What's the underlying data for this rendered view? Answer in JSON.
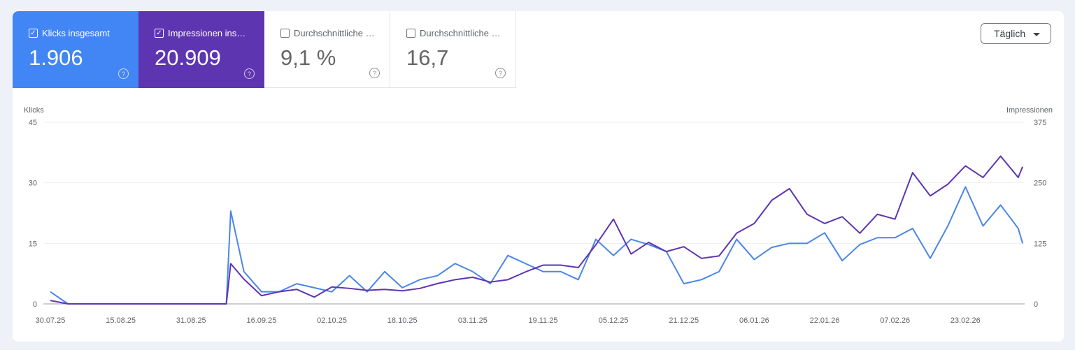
{
  "tiles": [
    {
      "label": "Klicks insgesamt",
      "value": "1.906",
      "checked": true,
      "color": "#4285f4"
    },
    {
      "label": "Impressionen ins…",
      "value": "20.909",
      "checked": true,
      "color": "#5e35b1"
    },
    {
      "label": "Durchschnittliche …",
      "value": "9,1 %",
      "checked": false
    },
    {
      "label": "Durchschnittliche …",
      "value": "16,7",
      "checked": false
    }
  ],
  "help_icon": "?",
  "check_icon": "✓",
  "granularity": {
    "selected": "Täglich"
  },
  "chart_data": {
    "type": "line",
    "ylabel_left": "Klicks",
    "ylabel_right": "Impressionen",
    "ylim_left": [
      0,
      45
    ],
    "ylim_right": [
      0,
      375
    ],
    "yticks_left": [
      "0",
      "15",
      "30",
      "45"
    ],
    "yticks_right": [
      "0",
      "125",
      "250",
      "375"
    ],
    "xticks": [
      "30.07.25",
      "15.08.25",
      "31.08.25",
      "16.09.25",
      "02.10.25",
      "18.10.25",
      "03.11.25",
      "19.11.25",
      "05.12.25",
      "21.12.25",
      "06.01.26",
      "22.01.26",
      "07.02.26",
      "23.02.26"
    ],
    "grid": true,
    "x": [
      "30.07.25",
      "03.08.25",
      "07.08.25",
      "11.08.25",
      "15.08.25",
      "19.08.25",
      "23.08.25",
      "27.08.25",
      "31.08.25",
      "04.09.25",
      "08.09.25",
      "09.09.25",
      "12.09.25",
      "16.09.25",
      "20.09.25",
      "24.09.25",
      "28.09.25",
      "02.10.25",
      "06.10.25",
      "10.10.25",
      "14.10.25",
      "18.10.25",
      "22.10.25",
      "26.10.25",
      "30.10.25",
      "03.11.25",
      "07.11.25",
      "11.11.25",
      "15.11.25",
      "19.11.25",
      "23.11.25",
      "27.11.25",
      "01.12.25",
      "05.12.25",
      "09.12.25",
      "13.12.25",
      "17.12.25",
      "21.12.25",
      "25.12.25",
      "29.12.25",
      "02.01.26",
      "06.01.26",
      "10.01.26",
      "14.01.26",
      "18.01.26",
      "22.01.26",
      "26.01.26",
      "30.01.26",
      "03.02.26",
      "07.02.26",
      "11.02.26",
      "15.02.26",
      "19.02.26",
      "23.02.26",
      "27.02.26",
      "03.03.26",
      "07.03.26",
      "08.03.26"
    ],
    "series": [
      {
        "name": "Klicks",
        "axis": "left",
        "color": "#4a86e8",
        "values": [
          3,
          0,
          0,
          0,
          0,
          0,
          0,
          0,
          0,
          0,
          0,
          23,
          8,
          3,
          3,
          5,
          4,
          3,
          7,
          3,
          8,
          4,
          6,
          7,
          10,
          8,
          5,
          12,
          10,
          8,
          8,
          6,
          16,
          12,
          16,
          14.7,
          13,
          5,
          6,
          8,
          16,
          11,
          14,
          15,
          15,
          17.6,
          10.7,
          14.7,
          16.4,
          16.4,
          18.7,
          11.3,
          19.3,
          29,
          19.3,
          24.5,
          18.7,
          15
        ]
      },
      {
        "name": "Impressionen",
        "axis": "right",
        "color": "#5e35b1",
        "values": [
          7,
          0,
          0,
          0,
          0,
          0,
          0,
          0,
          0,
          0,
          0,
          83,
          51,
          17,
          25,
          30,
          14,
          35,
          32,
          28,
          30,
          27,
          32,
          42,
          50,
          55,
          45,
          50,
          66,
          80,
          80,
          75,
          122,
          175,
          103,
          127,
          108,
          118,
          94,
          99,
          146,
          166,
          214,
          238,
          185,
          166,
          180,
          146,
          185,
          175,
          271,
          223,
          247,
          285,
          261,
          305,
          261,
          283
        ]
      }
    ]
  }
}
